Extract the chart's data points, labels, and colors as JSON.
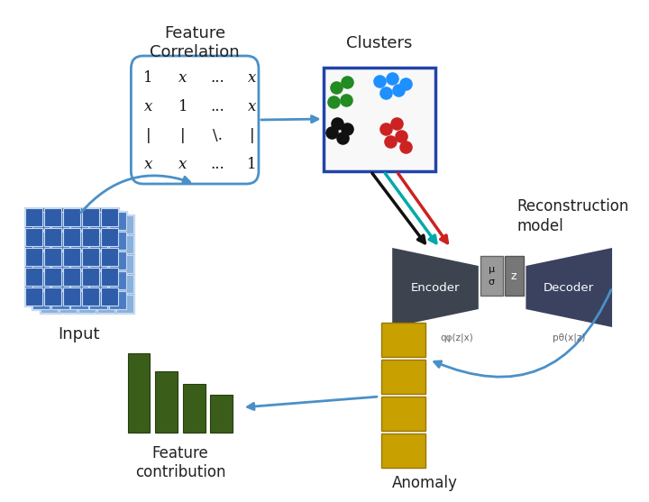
{
  "bg_color": "#ffffff",
  "feature_corr_label": "Feature\nCorrelation",
  "clusters_label": "Clusters",
  "reconstruction_label": "Reconstruction\nmodel",
  "anomaly_label": "Anomaly",
  "feature_contrib_label": "Feature\ncontribution",
  "input_label": "Input",
  "encoder_label": "Encoder",
  "decoder_label": "Decoder",
  "mu_label": "μ\nσ",
  "z_label": "z",
  "q_label": "qφ(z|x)",
  "p_label": "pθ(x|z)",
  "matrix_border": "#4a90c8",
  "clusters_border": "#2244aa",
  "encoder_color": "#3d4450",
  "decoder_color": "#3a4260",
  "mu_sigma_color": "#999999",
  "z_color": "#777777",
  "anomaly_color": "#c8a000",
  "bar_color": "#3a5e1a",
  "input_dark": "#2e5ca8",
  "input_mid": "#4a7cc4",
  "input_light": "#8ab0dc",
  "cluster_green": "#228B22",
  "cluster_blue": "#1e90ff",
  "cluster_black": "#111111",
  "cluster_red": "#cc2222",
  "arrow_color": "#4a90c8",
  "arrow_black": "#111111",
  "arrow_teal": "#00aaaa",
  "arrow_red": "#cc2222",
  "arrow_green": "#228B22"
}
